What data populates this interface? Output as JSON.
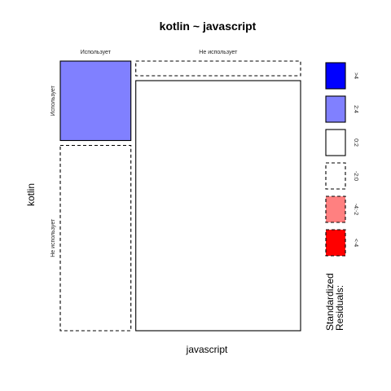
{
  "chart_data": {
    "type": "mosaic",
    "title": "kotlin ~ javascript",
    "xlabel": "javascript",
    "ylabel": "kotlin",
    "x_levels": [
      "Использует",
      "Не использует"
    ],
    "y_levels": [
      "Использует",
      "Не использует"
    ],
    "x_proportions": [
      0.3,
      0.7
    ],
    "cells": [
      {
        "x": "Использует",
        "y": "Использует",
        "y_share": 0.3,
        "residual_range": "2:4"
      },
      {
        "x": "Использует",
        "y": "Не использует",
        "y_share": 0.7,
        "residual_range": "-2:0"
      },
      {
        "x": "Не использует",
        "y": "Использует",
        "y_share": 0.0,
        "residual_range": "-2:0"
      },
      {
        "x": "Не использует",
        "y": "Не использует",
        "y_share": 1.0,
        "residual_range": "0:2"
      }
    ],
    "legend": {
      "title_lines": [
        "Standardized",
        "Residuals:"
      ],
      "placement": "right",
      "items": [
        {
          "label": ">4",
          "color": "#0000ff",
          "dashed": false
        },
        {
          "label": "2:4",
          "color": "#8080ff",
          "dashed": false
        },
        {
          "label": "0:2",
          "color": "#ffffff",
          "dashed": false
        },
        {
          "label": "-2:0",
          "color": "#ffffff",
          "dashed": true
        },
        {
          "label": "-4:-2",
          "color": "#ff8080",
          "dashed": true
        },
        {
          "label": "<-4",
          "color": "#ff0000",
          "dashed": true
        }
      ]
    }
  }
}
